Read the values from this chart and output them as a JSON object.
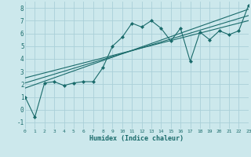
{
  "xlabel": "Humidex (Indice chaleur)",
  "bg_color": "#cce8ec",
  "grid_color": "#aad0d8",
  "line_color": "#1a6b6b",
  "xlim": [
    0,
    23
  ],
  "ylim": [
    -1.5,
    8.5
  ],
  "xticks": [
    0,
    1,
    2,
    3,
    4,
    5,
    6,
    7,
    8,
    9,
    10,
    11,
    12,
    13,
    14,
    15,
    16,
    17,
    18,
    19,
    20,
    21,
    22,
    23
  ],
  "yticks": [
    -1,
    0,
    1,
    2,
    3,
    4,
    5,
    6,
    7,
    8
  ],
  "series1_x": [
    0,
    1,
    2,
    3,
    4,
    5,
    6,
    7,
    8,
    9,
    10,
    11,
    12,
    13,
    14,
    15,
    16,
    17,
    18,
    19,
    20,
    21,
    22,
    23
  ],
  "series1_y": [
    1.0,
    -0.6,
    2.1,
    2.2,
    1.9,
    2.1,
    2.2,
    2.2,
    3.3,
    5.0,
    5.7,
    6.8,
    6.5,
    7.0,
    6.4,
    5.4,
    6.4,
    3.8,
    6.1,
    5.5,
    6.2,
    5.9,
    6.2,
    8.2
  ],
  "trend1_x": [
    0,
    23
  ],
  "trend1_y": [
    2.5,
    7.0
  ],
  "trend2_x": [
    0,
    23
  ],
  "trend2_y": [
    2.1,
    7.4
  ],
  "trend3_x": [
    0,
    23
  ],
  "trend3_y": [
    1.7,
    7.9
  ]
}
